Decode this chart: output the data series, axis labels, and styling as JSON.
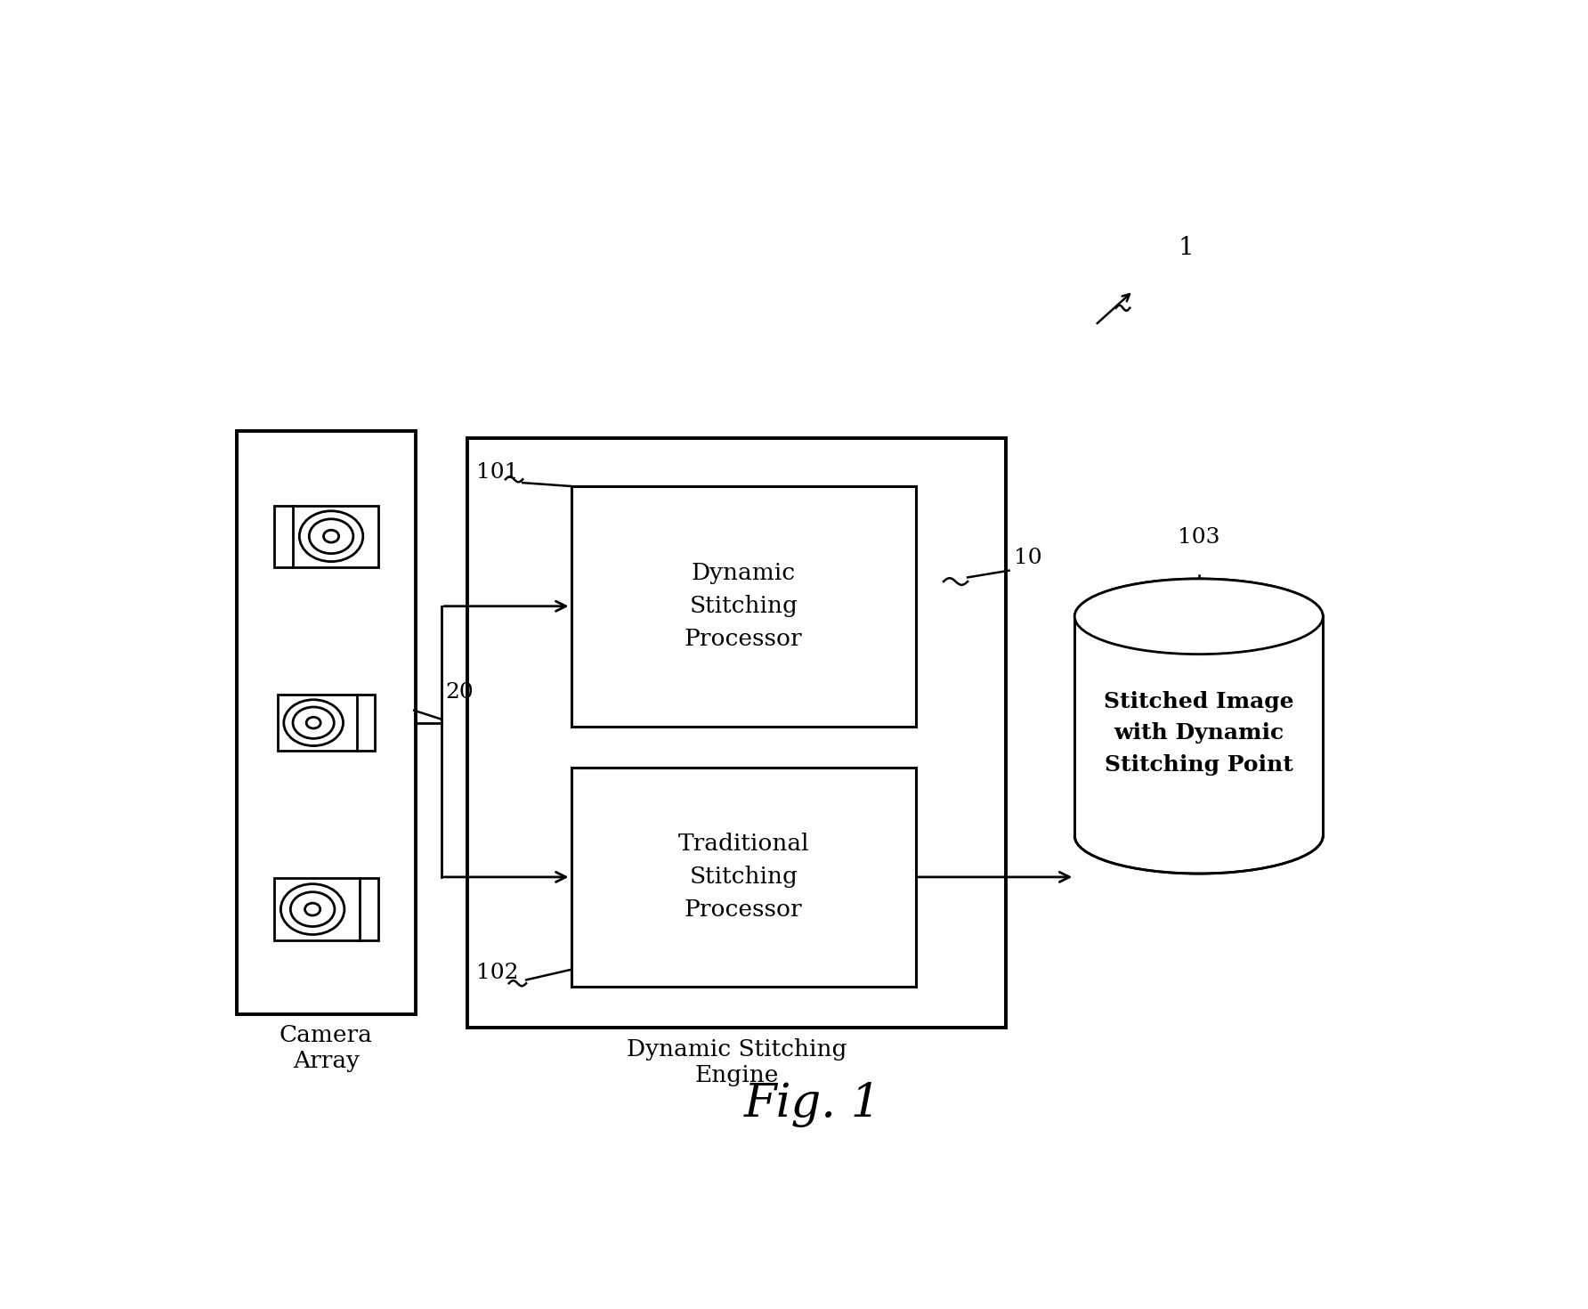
{
  "title": "Fig. 1",
  "background_color": "#ffffff",
  "fig_label": "1",
  "camera_array_label": "Camera\nArray",
  "engine_label": "Dynamic Stitching\nEngine",
  "proc1_label": "Dynamic\nStitching\nProcessor",
  "proc2_label": "Traditional\nStitching\nProcessor",
  "db_label": "Stitched Image\nwith Dynamic\nStitching Point",
  "label_20": "20",
  "label_10": "10",
  "label_101": "101",
  "label_102": "102",
  "label_103": "103"
}
